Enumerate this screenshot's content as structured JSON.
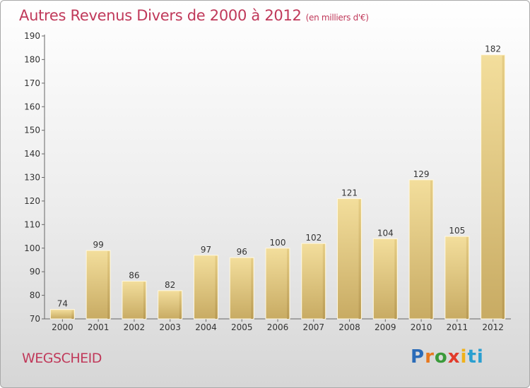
{
  "header": {
    "title": "Autres Revenus Divers de 2000 à 2012",
    "subtitle": "(en milliers d'€)"
  },
  "footer": {
    "place": "WEGSCHEID",
    "logo_letters": [
      "P",
      "r",
      "o",
      "x",
      "i",
      "ti"
    ]
  },
  "colors": {
    "title": "#c0395a",
    "bar_light": "#f2dc9a",
    "bar_dark": "#c9ad66"
  },
  "chart_data": {
    "type": "bar",
    "title": "Autres Revenus Divers de 2000 à 2012",
    "subtitle": "(en milliers d'€)",
    "categories": [
      "2000",
      "2001",
      "2002",
      "2003",
      "2004",
      "2005",
      "2006",
      "2007",
      "2008",
      "2009",
      "2010",
      "2011",
      "2012"
    ],
    "values": [
      74,
      99,
      86,
      82,
      97,
      96,
      100,
      102,
      121,
      104,
      129,
      105,
      182
    ],
    "ylim": [
      70,
      190
    ],
    "yticks": [
      70,
      80,
      90,
      100,
      110,
      120,
      130,
      140,
      150,
      160,
      170,
      180,
      190
    ],
    "xlabel": "",
    "ylabel": "",
    "grid": false,
    "legend": "none"
  }
}
